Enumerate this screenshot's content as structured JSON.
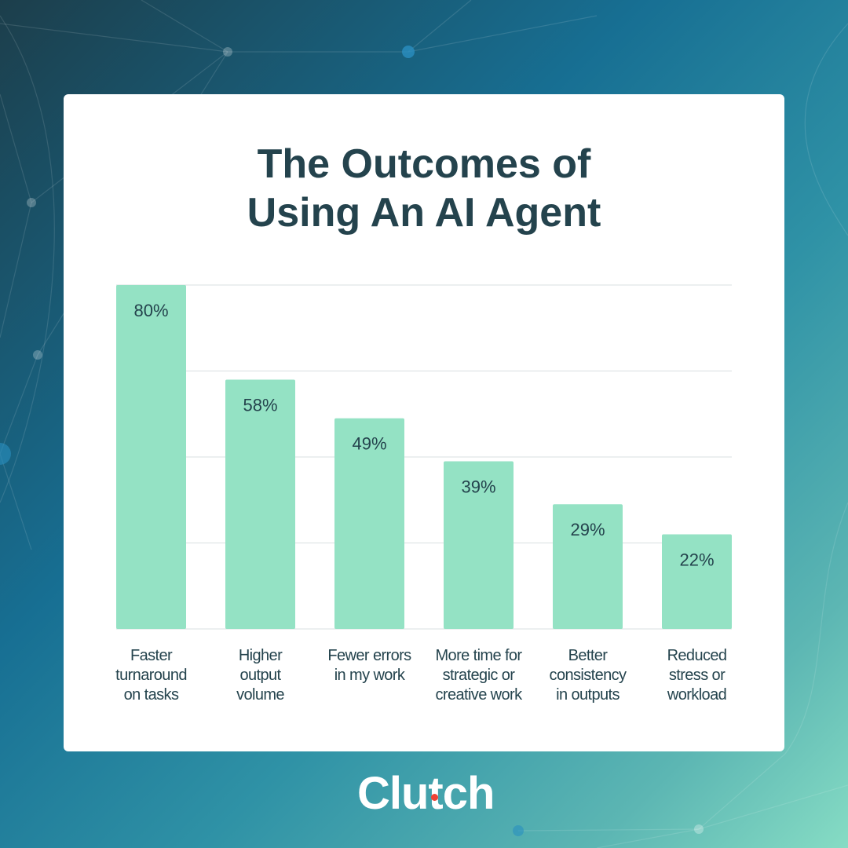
{
  "title_lines": [
    "The Outcomes of",
    "Using An AI Agent"
  ],
  "brand": {
    "name": "Clutch",
    "text_color": "#ffffff",
    "dot_color": "#ef4335"
  },
  "colors": {
    "bar": "#94e2c4",
    "label_text": "#24434d",
    "gridline": "#d9dfe1",
    "card": "#ffffff"
  },
  "chart_data": {
    "type": "bar",
    "title": "The Outcomes of Using An AI Agent",
    "categories": [
      [
        "Faster",
        "turnaround",
        "on tasks"
      ],
      [
        "Higher",
        "output",
        "volume"
      ],
      [
        "Fewer errors",
        "in my work"
      ],
      [
        "More time for",
        "strategic or",
        "creative work"
      ],
      [
        "Better",
        "consistency",
        "in outputs"
      ],
      [
        "Reduced",
        "stress or",
        "workload"
      ]
    ],
    "values": [
      80,
      58,
      49,
      39,
      29,
      22
    ],
    "value_labels": [
      "80%",
      "58%",
      "49%",
      "39%",
      "29%",
      "22%"
    ],
    "unit": "%",
    "ylim": [
      0,
      80
    ],
    "gridlines": [
      20,
      40,
      60,
      80
    ],
    "grid": true,
    "legend": "none"
  }
}
